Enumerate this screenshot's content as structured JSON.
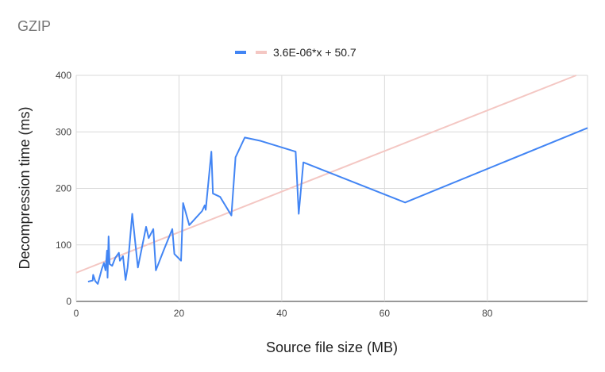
{
  "chart_data": {
    "type": "line",
    "title": "GZIP",
    "xlabel": "Source file size (MB)",
    "ylabel": "Decompression time (ms)",
    "xlim": [
      0,
      99.5
    ],
    "ylim": [
      0,
      400
    ],
    "x_ticks": [
      0,
      20,
      40,
      60,
      80
    ],
    "y_ticks": [
      0,
      100,
      200,
      300,
      400
    ],
    "grid": true,
    "legend_position": "top",
    "series": [
      {
        "name": "",
        "color": "#4285f4",
        "points": [
          [
            2.3,
            35
          ],
          [
            3.2,
            37
          ],
          [
            3.3,
            47
          ],
          [
            3.7,
            36
          ],
          [
            4.2,
            31
          ],
          [
            5.0,
            58
          ],
          [
            5.4,
            68
          ],
          [
            5.7,
            55
          ],
          [
            6.0,
            90
          ],
          [
            6.1,
            42
          ],
          [
            6.3,
            115
          ],
          [
            6.5,
            66
          ],
          [
            7.0,
            63
          ],
          [
            7.6,
            77
          ],
          [
            8.3,
            86
          ],
          [
            8.5,
            72
          ],
          [
            9.1,
            80
          ],
          [
            9.6,
            38
          ],
          [
            10.0,
            60
          ],
          [
            10.9,
            155
          ],
          [
            12.0,
            60
          ],
          [
            13.2,
            114
          ],
          [
            13.6,
            132
          ],
          [
            14.1,
            112
          ],
          [
            15.0,
            128
          ],
          [
            15.5,
            55
          ],
          [
            17.0,
            90
          ],
          [
            18.7,
            128
          ],
          [
            19.1,
            84
          ],
          [
            20.4,
            72
          ],
          [
            20.8,
            174
          ],
          [
            22.0,
            135
          ],
          [
            24.5,
            160
          ],
          [
            25.0,
            170
          ],
          [
            25.2,
            162
          ],
          [
            26.3,
            265
          ],
          [
            26.6,
            191
          ],
          [
            28.0,
            185
          ],
          [
            30.2,
            152
          ],
          [
            31.0,
            255
          ],
          [
            32.8,
            290
          ],
          [
            35.9,
            284
          ],
          [
            42.7,
            265
          ],
          [
            43.3,
            155
          ],
          [
            44.2,
            246
          ],
          [
            64.0,
            175
          ],
          [
            99.5,
            307
          ]
        ]
      },
      {
        "name": "3.6E-06*x + 50.7",
        "color": "#f4c7c3",
        "points": [
          [
            0,
            50.7
          ],
          [
            97.3,
            400
          ]
        ]
      }
    ]
  }
}
